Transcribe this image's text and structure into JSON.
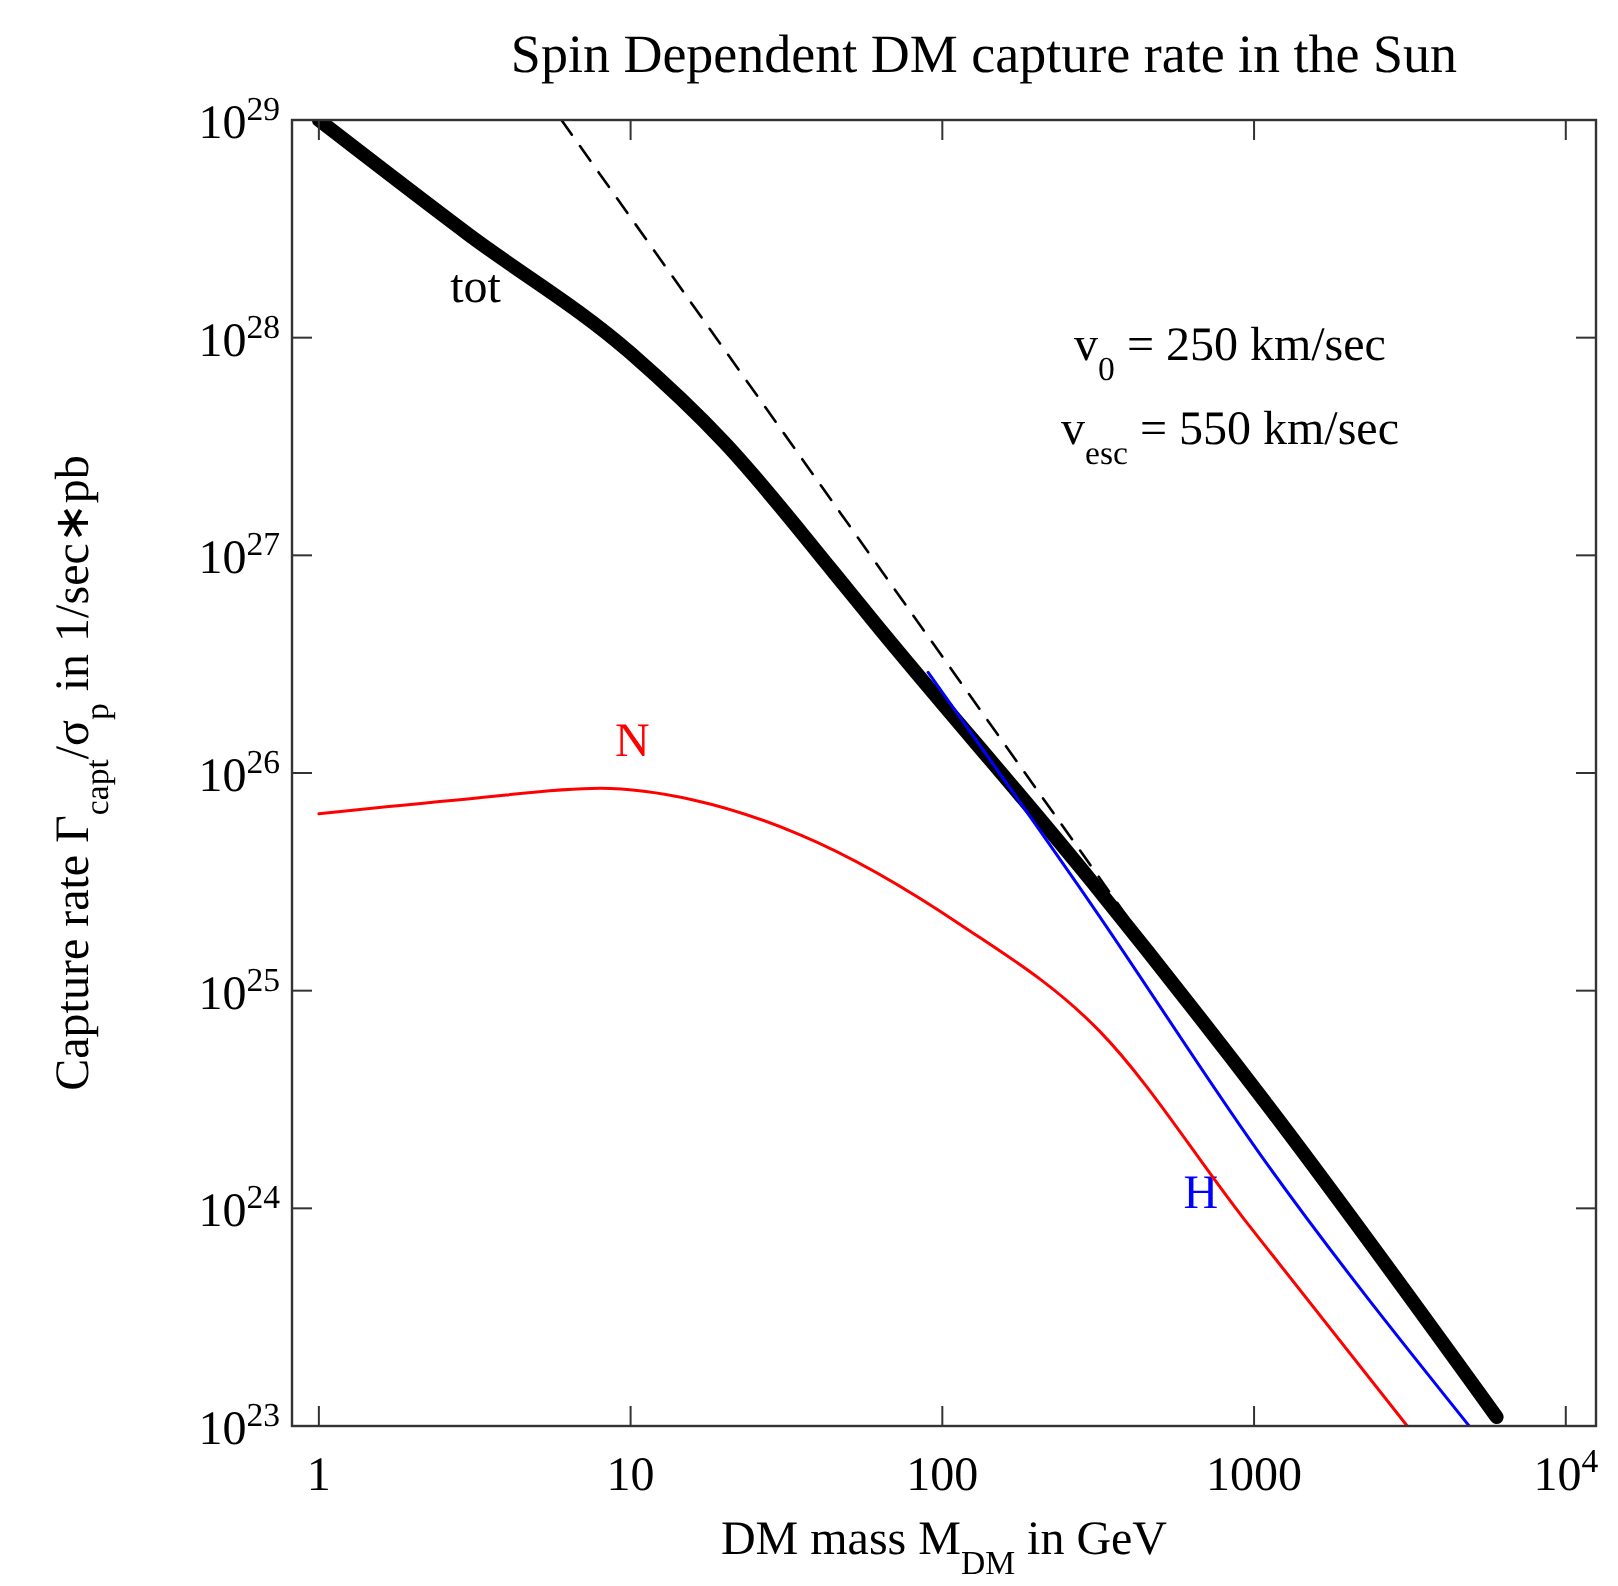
{
  "chart_data": {
    "type": "line",
    "title": "Spin Dependent DM capture rate in the Sun",
    "xlabel": "DM mass M$_{DM}$ in GeV",
    "ylabel": "Capture rate Γ$_{capt}$/σ$_{p}$ in 1/sec∗pb",
    "log": "xy",
    "xlim": [
      0.82,
      12500
    ],
    "ylim": [
      1e+23,
      1e+29
    ],
    "xticks": [
      1,
      10,
      100,
      1000,
      {
        "value": 10000,
        "label": "10$^{4}$"
      }
    ],
    "yticks": [
      {
        "value": 1e+23,
        "label": "10$^{23}$"
      },
      {
        "value": 1e+24,
        "label": "10$^{24}$"
      },
      {
        "value": 1e+25,
        "label": "10$^{25}$"
      },
      {
        "value": 1e+26,
        "label": "10$^{26}$"
      },
      {
        "value": 1e+27,
        "label": "10$^{27}$"
      },
      {
        "value": 1e+28,
        "label": "10$^{28}$"
      },
      {
        "value": 1e+29,
        "label": "10$^{29}$"
      }
    ],
    "grid": false,
    "legend": false,
    "marker": "none",
    "annotations": [
      "v$_{0}$ = 250 km/sec",
      "v$_{esc}$ = 550 km/sec"
    ],
    "series": [
      {
        "name": "tot",
        "color": "#000000",
        "x": [
          1,
          3,
          10,
          20,
          45,
          60,
          300,
          1100,
          6000
        ],
        "values": [
          1e+29,
          3e+28,
          8.5e+27,
          3.3e+27,
          8.3e+26,
          5e+26,
          3.2e+25,
          3e+24,
          1.1e+23
        ]
      },
      {
        "color": "#000000",
        "line_style": "dashed",
        "x": [
          6,
          550
        ],
        "values": [
          1e+29,
          1.1e+25
        ]
      },
      {
        "name": "H",
        "color": "#0000ff",
        "x": [
          90,
          300,
          1100,
          4900
        ],
        "values": [
          2.9e+26,
          2.5e+25,
          1.6e+24,
          1e+23
        ]
      },
      {
        "name": "N",
        "color": "#ff0000",
        "x": [
          1,
          3,
          8,
          16,
          35,
          115,
          320,
          930,
          3100
        ],
        "values": [
          6.5e+25,
          7.6e+25,
          8.5e+25,
          7.5e+25,
          5.2e+25,
          2e+25,
          6.5e+24,
          8.9e+23,
          1e+23
        ]
      }
    ]
  }
}
